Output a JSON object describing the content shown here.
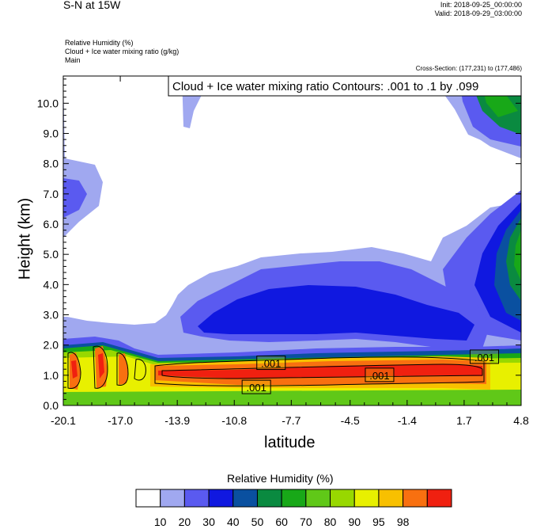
{
  "header": {
    "title": "S-N at 15W",
    "init": "Init: 2018-09-25_00:00:00",
    "valid": "Valid: 2018-09-29_03:00:00",
    "fields": [
      "Relative Humidity   (%)",
      "Cloud + Ice water mixing ratio   (g/kg)",
      "Main"
    ],
    "cross_section": "Cross-Section: (177,231) to (177,486)"
  },
  "chart_data": {
    "type": "heatmap",
    "xlabel": "latitude",
    "ylabel": "Height (km)",
    "x_ticks": [
      "-20.1",
      "-17.0",
      "-13.9",
      "-10.8",
      "-7.7",
      "-4.5",
      "-1.4",
      "1.7",
      "4.8"
    ],
    "xlim": [
      -20.1,
      4.8
    ],
    "y_ticks": [
      "0.0",
      "1.0",
      "2.0",
      "3.0",
      "4.0",
      "5.0",
      "6.0",
      "7.0",
      "8.0",
      "9.0",
      "10.0"
    ],
    "ylim": [
      0,
      10.9
    ],
    "contour_info": "Cloud + Ice water mixing ratio Contours: .001 to .1 by .099",
    "contour_labels": [
      {
        "text": ".001",
        "x": -8.8,
        "y": 1.4
      },
      {
        "text": ".001",
        "x": -9.6,
        "y": 0.6
      },
      {
        "text": ".001",
        "x": -2.9,
        "y": 1.0
      },
      {
        "text": ".001",
        "x": 2.8,
        "y": 1.6
      }
    ],
    "colorbar": {
      "title": "Relative Humidity  (%)",
      "levels": [
        "10",
        "20",
        "30",
        "40",
        "50",
        "60",
        "70",
        "80",
        "90",
        "95",
        "98"
      ],
      "colors": [
        "#ffffff",
        "#a0a8f0",
        "#5a5af0",
        "#1018e0",
        "#0a50a0",
        "#0a8a40",
        "#18a818",
        "#60c818",
        "#98d800",
        "#e8f000",
        "#f8c000",
        "#f87010",
        "#f02010"
      ]
    },
    "rh_bands": [
      {
        "level": 1,
        "color": "#a0a8f0",
        "desc": "upper left band"
      },
      {
        "level": 2,
        "color": "#5a5af0"
      },
      {
        "level": 3,
        "color": "#1018e0"
      }
    ]
  }
}
